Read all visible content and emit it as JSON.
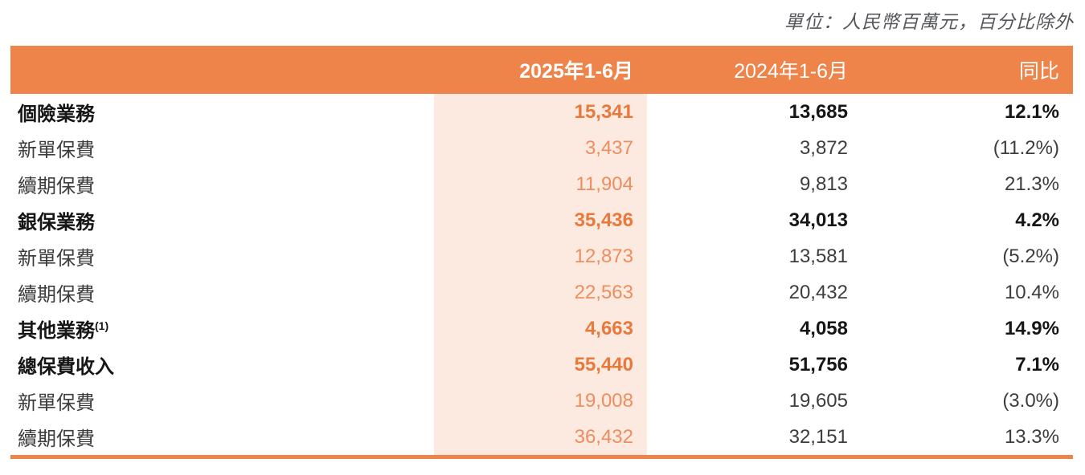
{
  "unit_note": "單位：人民幣百萬元，百分比除外",
  "colors": {
    "header_bg": "#ee8449",
    "highlight_col_bg": "#fce9e0",
    "accent_orange_bold": "#e8793a",
    "accent_orange_regular": "#ee8e5e",
    "rule_orange": "#ee8449",
    "text_dark": "#161616",
    "text_regular": "#3d3d3d",
    "note_gray": "#56575b"
  },
  "table": {
    "columns": [
      "",
      "2025年1-6月",
      "2024年1-6月",
      "同比"
    ],
    "rows": [
      {
        "label": "個險業務",
        "sup": "",
        "v2025": "15,341",
        "v2024": "13,685",
        "yoy": "12.1%",
        "bold": true
      },
      {
        "label": "新單保費",
        "sup": "",
        "v2025": "3,437",
        "v2024": "3,872",
        "yoy": "(11.2%)",
        "bold": false
      },
      {
        "label": "續期保費",
        "sup": "",
        "v2025": "11,904",
        "v2024": "9,813",
        "yoy": "21.3%",
        "bold": false
      },
      {
        "label": "銀保業務",
        "sup": "",
        "v2025": "35,436",
        "v2024": "34,013",
        "yoy": "4.2%",
        "bold": true
      },
      {
        "label": "新單保費",
        "sup": "",
        "v2025": "12,873",
        "v2024": "13,581",
        "yoy": "(5.2%)",
        "bold": false
      },
      {
        "label": "續期保費",
        "sup": "",
        "v2025": "22,563",
        "v2024": "20,432",
        "yoy": "10.4%",
        "bold": false
      },
      {
        "label": "其他業務",
        "sup": "(1)",
        "v2025": "4,663",
        "v2024": "4,058",
        "yoy": "14.9%",
        "bold": true
      },
      {
        "label": "總保費收入",
        "sup": "",
        "v2025": "55,440",
        "v2024": "51,756",
        "yoy": "7.1%",
        "bold": true
      },
      {
        "label": "新單保費",
        "sup": "",
        "v2025": "19,008",
        "v2024": "19,605",
        "yoy": "(3.0%)",
        "bold": false
      },
      {
        "label": "續期保費",
        "sup": "",
        "v2025": "36,432",
        "v2024": "32,151",
        "yoy": "13.3%",
        "bold": false
      }
    ]
  }
}
